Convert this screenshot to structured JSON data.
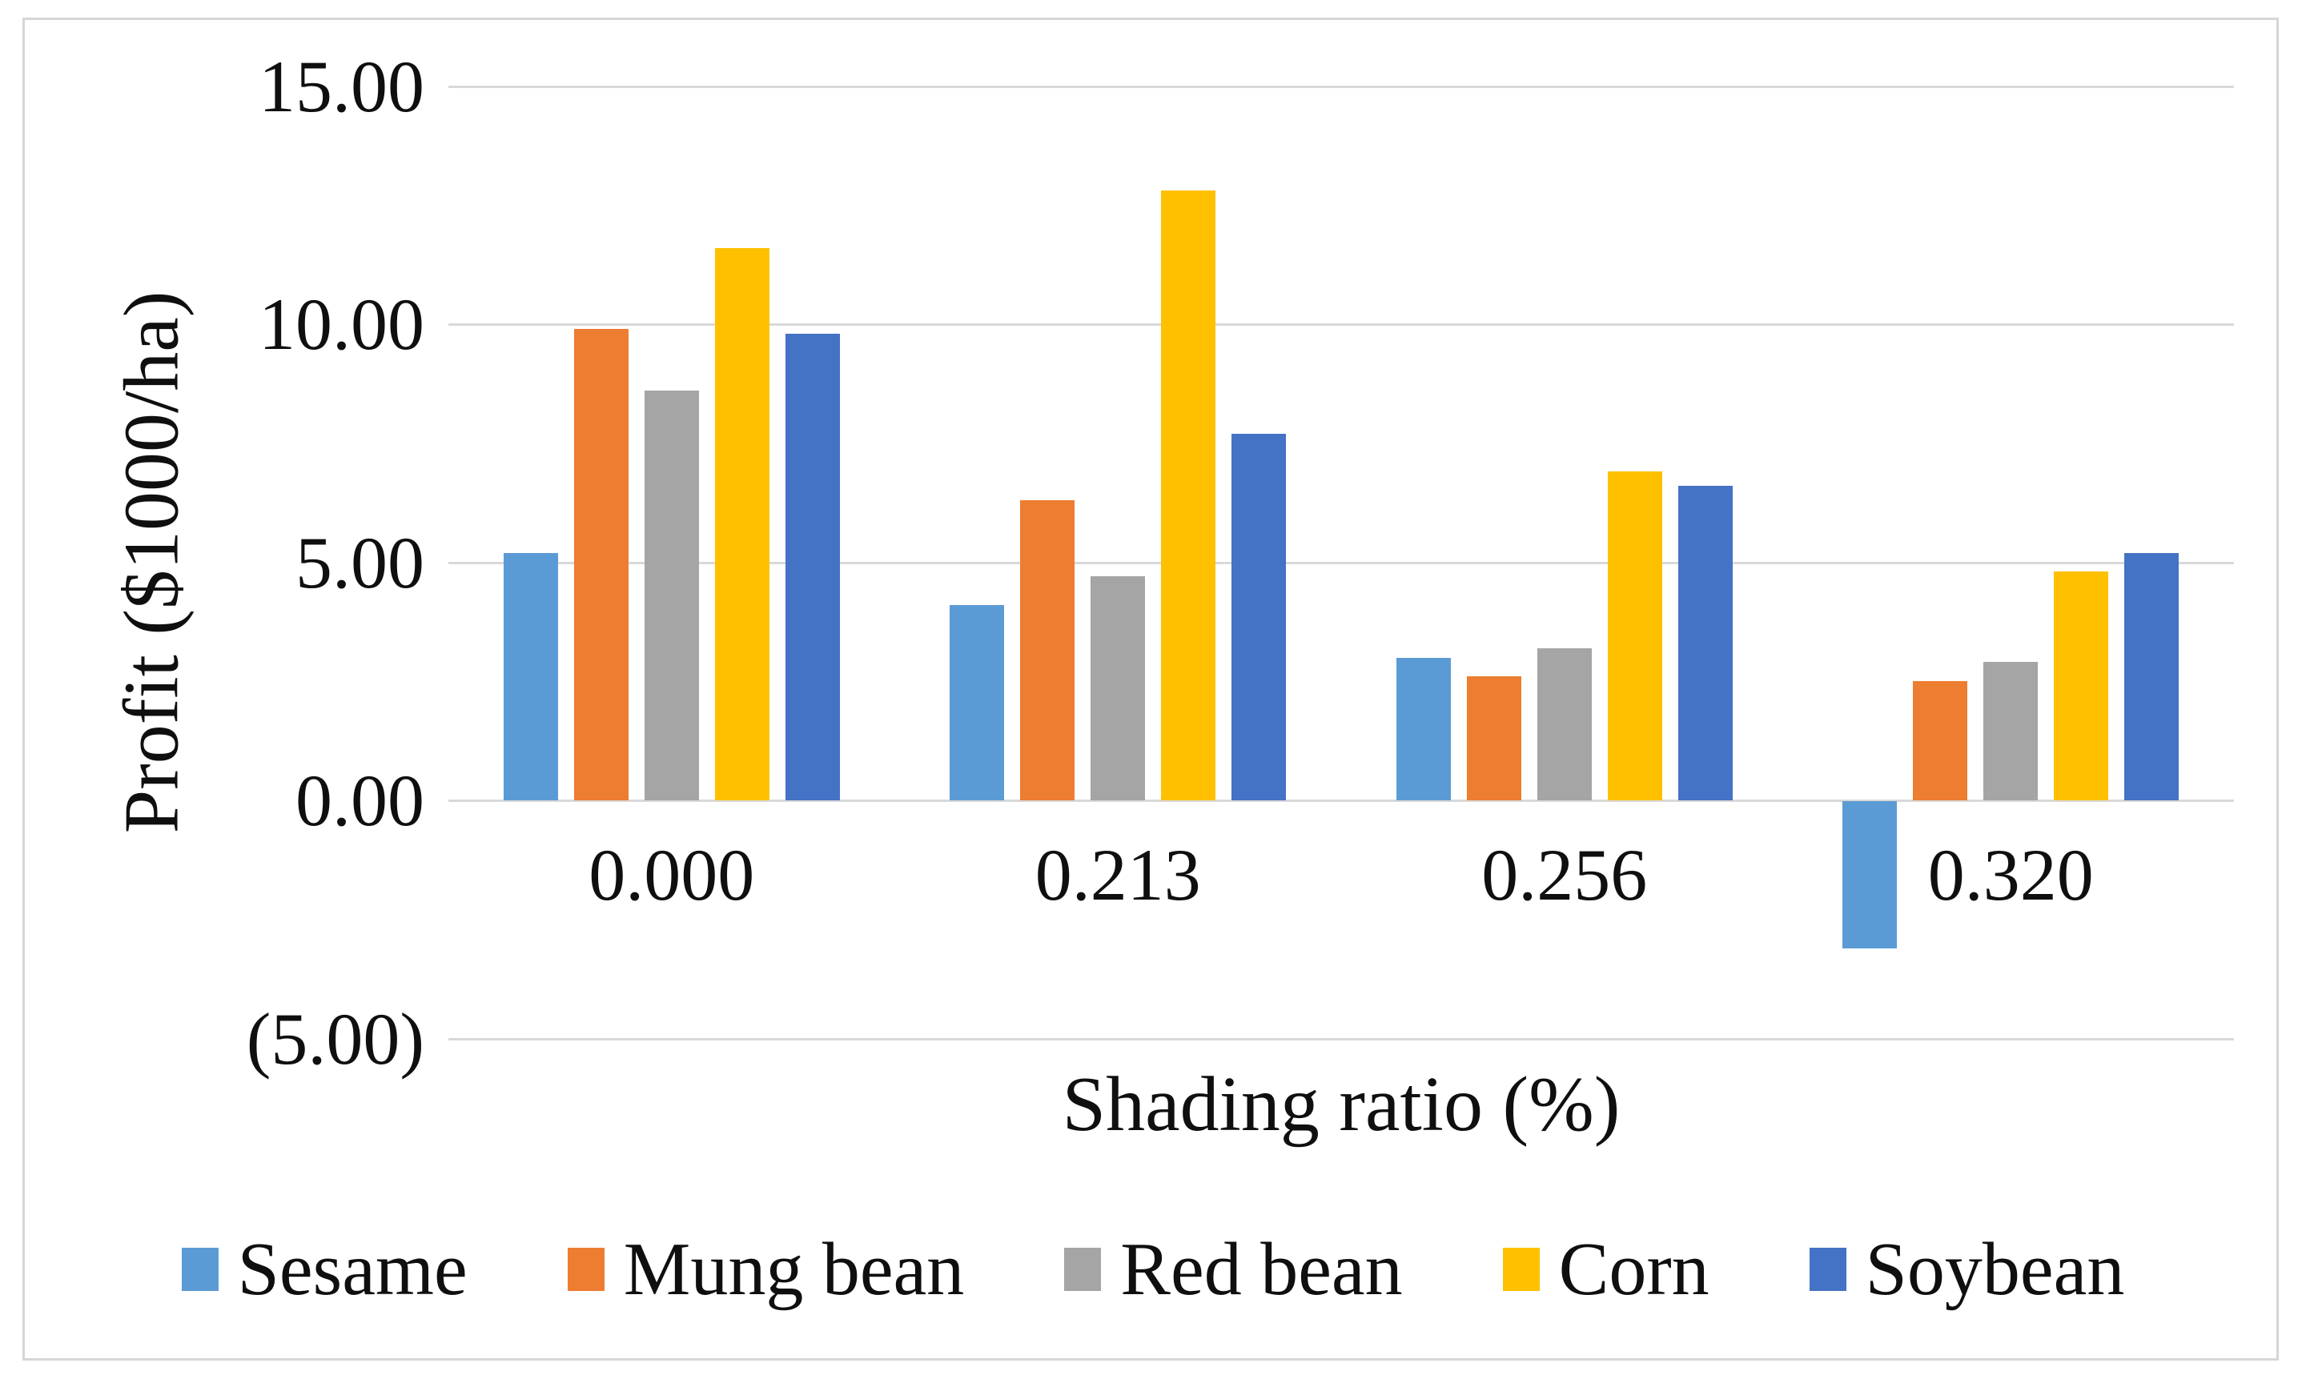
{
  "chart_data": {
    "type": "bar",
    "title": "",
    "xlabel": "Shading ratio (%)",
    "ylabel": "Profit ($1000/ha)",
    "categories": [
      "0.000",
      "0.213",
      "0.256",
      "0.320"
    ],
    "series": [
      {
        "name": "Sesame",
        "color": "#5B9BD5",
        "values": [
          5.2,
          4.1,
          3.0,
          -3.1
        ]
      },
      {
        "name": "Mung bean",
        "color": "#ED7D31",
        "values": [
          9.9,
          6.3,
          2.6,
          2.5
        ]
      },
      {
        "name": "Red bean",
        "color": "#A5A5A5",
        "values": [
          8.6,
          4.7,
          3.2,
          2.9
        ]
      },
      {
        "name": "Corn",
        "color": "#FFC000",
        "values": [
          11.6,
          12.8,
          6.9,
          4.8
        ]
      },
      {
        "name": "Soybean",
        "color": "#4472C4",
        "values": [
          9.8,
          7.7,
          6.6,
          5.2
        ]
      }
    ],
    "ylim": [
      -5,
      15
    ],
    "yticks": [
      {
        "value": 15,
        "label": "15.00"
      },
      {
        "value": 10,
        "label": "10.00"
      },
      {
        "value": 5,
        "label": "5.00"
      },
      {
        "value": 0,
        "label": "0.00"
      },
      {
        "value": -5,
        "label": "(5.00)"
      }
    ],
    "grid": true,
    "legend_position": "bottom",
    "colors": {
      "gridline": "#D9D9D9",
      "figure_border": "#D6D6D6",
      "text": "#0F0F0F",
      "background": "#FFFFFF"
    }
  }
}
